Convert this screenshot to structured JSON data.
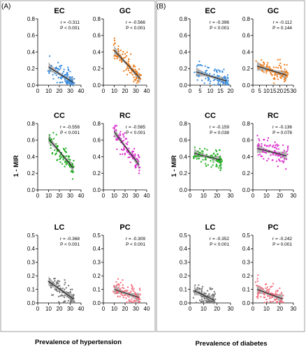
{
  "figure": {
    "panels": [
      {
        "label": "(A)",
        "xlabel": "Prevalence of hypertension",
        "ylabel": "1 - MIR"
      },
      {
        "label": "(B)",
        "xlabel": "Prevalence of diabetes",
        "ylabel": "1 - MIR"
      }
    ]
  },
  "chart_data": [
    {
      "type": "scatter",
      "group": "A",
      "title": "EC",
      "color": "#3d8fe0",
      "xlim": [
        0,
        40
      ],
      "ylim": [
        0,
        0.8
      ],
      "xticks": [
        0,
        10,
        20,
        30,
        40
      ],
      "yticks": [
        0.0,
        0.2,
        0.4,
        0.6,
        0.8
      ],
      "stats": {
        "r": "r = -0.311",
        "p": "P < 0.001"
      },
      "fit": {
        "x": [
          10,
          33
        ],
        "y": [
          0.22,
          0.03
        ]
      }
    },
    {
      "type": "scatter",
      "group": "A",
      "title": "GC",
      "color": "#f07d1a",
      "xlim": [
        0,
        40
      ],
      "ylim": [
        0,
        0.8
      ],
      "xticks": [
        0,
        10,
        20,
        30,
        40
      ],
      "yticks": [
        0.0,
        0.2,
        0.4,
        0.6,
        0.8
      ],
      "stats": {
        "r": "r = -0.566",
        "p": "P < 0.001"
      },
      "fit": {
        "x": [
          10,
          34
        ],
        "y": [
          0.42,
          0.08
        ]
      }
    },
    {
      "type": "scatter",
      "group": "A",
      "title": "CC",
      "color": "#22b022",
      "xlim": [
        0,
        40
      ],
      "ylim": [
        0,
        0.8
      ],
      "xticks": [
        0,
        10,
        20,
        30,
        40
      ],
      "yticks": [
        0.0,
        0.2,
        0.4,
        0.6,
        0.8
      ],
      "stats": {
        "r": "r = -0.558",
        "p": "P < 0.001"
      },
      "fit": {
        "x": [
          10,
          33
        ],
        "y": [
          0.62,
          0.26
        ]
      }
    },
    {
      "type": "scatter",
      "group": "A",
      "title": "RC",
      "color": "#dd2fcf",
      "xlim": [
        0,
        40
      ],
      "ylim": [
        0,
        0.8
      ],
      "xticks": [
        0,
        10,
        20,
        30,
        40
      ],
      "yticks": [
        0.0,
        0.2,
        0.4,
        0.6,
        0.8
      ],
      "stats": {
        "r": "r = -0.585",
        "p": "P < 0.001"
      },
      "fit": {
        "x": [
          10,
          33
        ],
        "y": [
          0.7,
          0.3
        ]
      }
    },
    {
      "type": "scatter",
      "group": "A",
      "title": "LC",
      "color": "#777777",
      "xlim": [
        0,
        40
      ],
      "ylim": [
        0,
        0.5
      ],
      "xticks": [
        0,
        10,
        20,
        30,
        40
      ],
      "yticks": [
        0.0,
        0.1,
        0.2,
        0.3,
        0.4,
        0.5
      ],
      "stats": {
        "r": "r = -0.368",
        "p": "P < 0.001"
      },
      "fit": {
        "x": [
          10,
          33
        ],
        "y": [
          0.16,
          0.03
        ]
      }
    },
    {
      "type": "scatter",
      "group": "A",
      "title": "PC",
      "color": "#f36e7e",
      "xlim": [
        0,
        40
      ],
      "ylim": [
        0,
        0.5
      ],
      "xticks": [
        0,
        10,
        20,
        30,
        40
      ],
      "yticks": [
        0.0,
        0.1,
        0.2,
        0.3,
        0.4,
        0.5
      ],
      "stats": {
        "r": "r = -0.309",
        "p": "P < 0.001"
      },
      "fit": {
        "x": [
          10,
          33
        ],
        "y": [
          0.1,
          0.04
        ]
      }
    },
    {
      "type": "scatter",
      "group": "B",
      "title": "EC",
      "color": "#3d8fe0",
      "xlim": [
        0,
        20
      ],
      "ylim": [
        0,
        0.8
      ],
      "xticks": [
        0,
        5,
        10,
        15,
        20
      ],
      "yticks": [
        0.0,
        0.2,
        0.4,
        0.6,
        0.8
      ],
      "stats": {
        "r": "r = -0.396",
        "p": "P < 0.001"
      },
      "fit": {
        "x": [
          3,
          18
        ],
        "y": [
          0.16,
          0.05
        ]
      }
    },
    {
      "type": "scatter",
      "group": "B",
      "title": "GC",
      "color": "#f07d1a",
      "xlim": [
        0,
        30
      ],
      "ylim": [
        0,
        0.8
      ],
      "xticks": [
        0,
        5,
        10,
        15,
        20,
        25,
        30
      ],
      "yticks": [
        0.0,
        0.2,
        0.4,
        0.6,
        0.8
      ],
      "stats": {
        "r": "r = -0.112",
        "p": "P = 0.144"
      },
      "fit": {
        "x": [
          3,
          25
        ],
        "y": [
          0.23,
          0.12
        ]
      }
    },
    {
      "type": "scatter",
      "group": "B",
      "title": "CC",
      "color": "#22b022",
      "xlim": [
        0,
        30
      ],
      "ylim": [
        0,
        0.8
      ],
      "xticks": [
        0,
        10,
        20,
        30
      ],
      "yticks": [
        0.0,
        0.2,
        0.4,
        0.6,
        0.8
      ],
      "stats": {
        "r": "r = -0.159",
        "p": "P = 0.038"
      },
      "fit": {
        "x": [
          3,
          23
        ],
        "y": [
          0.44,
          0.36
        ]
      }
    },
    {
      "type": "scatter",
      "group": "B",
      "title": "RC",
      "color": "#dd2fcf",
      "xlim": [
        0,
        30
      ],
      "ylim": [
        0,
        0.8
      ],
      "xticks": [
        0,
        10,
        20,
        30
      ],
      "yticks": [
        0.0,
        0.2,
        0.4,
        0.6,
        0.8
      ],
      "stats": {
        "r": "r = -0.136",
        "p": "P = 0.078"
      },
      "fit": {
        "x": [
          3,
          25
        ],
        "y": [
          0.5,
          0.41
        ]
      }
    },
    {
      "type": "scatter",
      "group": "B",
      "title": "LC",
      "color": "#777777",
      "xlim": [
        0,
        30
      ],
      "ylim": [
        0,
        0.5
      ],
      "xticks": [
        0,
        10,
        20,
        30
      ],
      "yticks": [
        0.0,
        0.1,
        0.2,
        0.3,
        0.4,
        0.5
      ],
      "stats": {
        "r": "r = -0.352",
        "p": "P < 0.001"
      },
      "fit": {
        "x": [
          3,
          18
        ],
        "y": [
          0.09,
          0.02
        ]
      }
    },
    {
      "type": "scatter",
      "group": "B",
      "title": "PC",
      "color": "#f36e7e",
      "xlim": [
        0,
        30
      ],
      "ylim": [
        0,
        0.5
      ],
      "xticks": [
        0,
        10,
        20,
        30
      ],
      "yticks": [
        0.0,
        0.1,
        0.2,
        0.3,
        0.4,
        0.5
      ],
      "stats": {
        "r": "r = -0.242",
        "p": "P = 0.001"
      },
      "fit": {
        "x": [
          3,
          22
        ],
        "y": [
          0.1,
          0.03
        ]
      }
    }
  ]
}
